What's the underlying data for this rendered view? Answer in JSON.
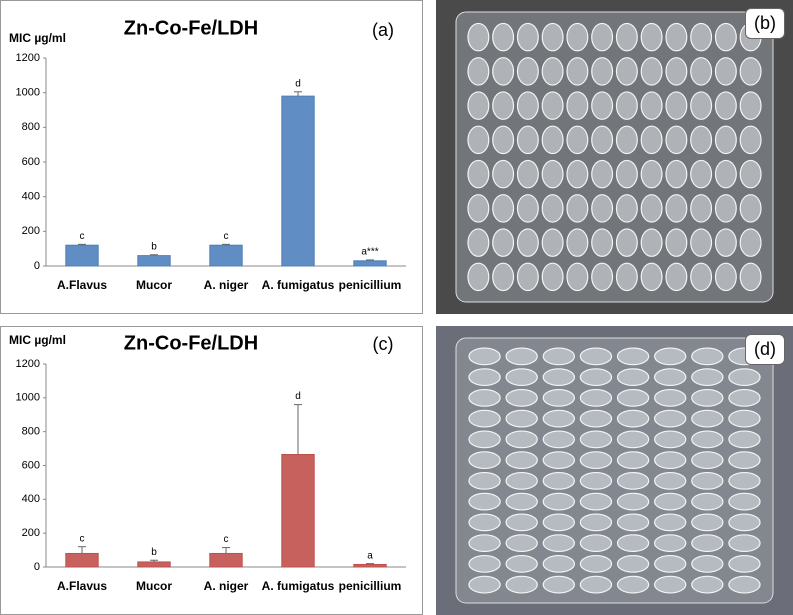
{
  "chart_data": [
    {
      "type": "bar",
      "title": "Zn-Co-Fe/LDH",
      "ylabel": "MIC µg/ml",
      "panel": "(a)",
      "categories": [
        "A.Flavus",
        "Mucor",
        "A. niger",
        "A. fumigatus",
        "penicillium"
      ],
      "values": [
        120,
        60,
        120,
        980,
        30
      ],
      "errors": [
        5,
        5,
        5,
        25,
        5
      ],
      "annotations": [
        "c",
        "b",
        "c",
        "d",
        "a***"
      ],
      "color": "#4f81bd",
      "ylim": [
        0,
        1200
      ],
      "yticks": [
        0,
        200,
        400,
        600,
        800,
        1000,
        1200
      ]
    },
    {
      "type": "bar",
      "title": "Zn-Co-Fe/LDH",
      "ylabel": "MIC µg/ml",
      "panel": "(c)",
      "categories": [
        "A.Flavus",
        "Mucor",
        "A. niger",
        "A. fumigatus",
        "penicillium"
      ],
      "values": [
        80,
        30,
        80,
        665,
        15
      ],
      "errors": [
        40,
        10,
        35,
        295,
        5
      ],
      "annotations": [
        "c",
        "b",
        "c",
        "d",
        "a"
      ],
      "color": "#c0504d",
      "ylim": [
        0,
        1200
      ],
      "yticks": [
        0,
        200,
        400,
        600,
        800,
        1000,
        1200
      ]
    }
  ],
  "photos": [
    {
      "label": "(b)"
    },
    {
      "label": "(d)"
    }
  ]
}
